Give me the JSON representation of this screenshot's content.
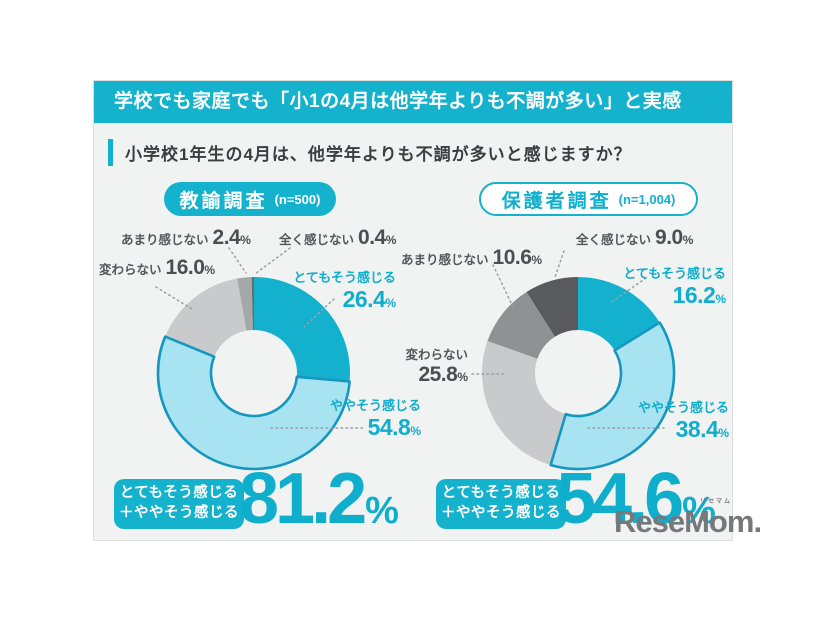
{
  "header": {
    "banner": "学校でも家庭でも「小1の4月は他学年よりも不調が多い」と実感",
    "question": "小学校1年生の4月は、他学年よりも不調が多いと感じますか？"
  },
  "colors": {
    "teal": "#15b2cd",
    "teal_text": "#10aecd",
    "light_blue": "#a8e3f2",
    "light_blue_stroke": "#1697bf",
    "light_gray": "#c9cacb",
    "mid_gray": "#9c9ea0",
    "dark_gray": "#595a5c",
    "card_bg": "#f1f2f2",
    "label_gray": "#55575a"
  },
  "chart_data": {
    "type": "pie",
    "unit": "%",
    "charts": [
      {
        "badge": "教諭調査",
        "n_label": "(n=500)",
        "badge_style": "filled",
        "categories": [
          "とてもそう感じる",
          "ややそう感じる",
          "変わらない",
          "あまり感じない",
          "全く感じない"
        ],
        "values": [
          26.4,
          54.8,
          16.0,
          2.4,
          0.4
        ],
        "segments": [
          {
            "label": "とてもそう感じる",
            "pct": 26.4,
            "pct_label": "26.4",
            "color": "#14b1ce"
          },
          {
            "label": "ややそう感じる",
            "pct": 54.8,
            "pct_label": "54.8",
            "color": "#a8e3f2",
            "stroke": "#1697bf"
          },
          {
            "label": "変わらない",
            "pct": 16.0,
            "pct_label": "16.0",
            "color": "#c9cacb"
          },
          {
            "label": "あまり感じない",
            "pct": 2.4,
            "pct_label": "2.4",
            "color": "#a5a7a9"
          },
          {
            "label": "全く感じない",
            "pct": 0.4,
            "pct_label": "0.4",
            "color": "#6a6b6d"
          }
        ],
        "summary": {
          "line1": "とてもそう感じる",
          "line2": "＋ややそう感じる",
          "value": "81.2"
        }
      },
      {
        "badge": "保護者調査",
        "n_label": "(n=1,004)",
        "badge_style": "outline",
        "categories": [
          "とてもそう感じる",
          "ややそう感じる",
          "変わらない",
          "あまり感じない",
          "全く感じない"
        ],
        "values": [
          16.2,
          38.4,
          25.8,
          10.6,
          9.0
        ],
        "segments": [
          {
            "label": "とてもそう感じる",
            "pct": 16.2,
            "pct_label": "16.2",
            "color": "#14b1ce"
          },
          {
            "label": "ややそう感じる",
            "pct": 38.4,
            "pct_label": "38.4",
            "color": "#a8e3f2",
            "stroke": "#1697bf"
          },
          {
            "label": "変わらない",
            "pct": 25.8,
            "pct_label": "25.8",
            "color": "#c9cacb"
          },
          {
            "label": "あまり感じない",
            "pct": 10.6,
            "pct_label": "10.6",
            "color": "#8f9193"
          },
          {
            "label": "全く感じない",
            "pct": 9.0,
            "pct_label": "9.0",
            "color": "#595a5c"
          }
        ],
        "summary": {
          "line1": "とてもそう感じる",
          "line2": "＋ややそう感じる",
          "value": "54.6"
        }
      }
    ]
  },
  "logo": {
    "ruby": "リセマム",
    "text": "ReseMom",
    "dot": "."
  }
}
